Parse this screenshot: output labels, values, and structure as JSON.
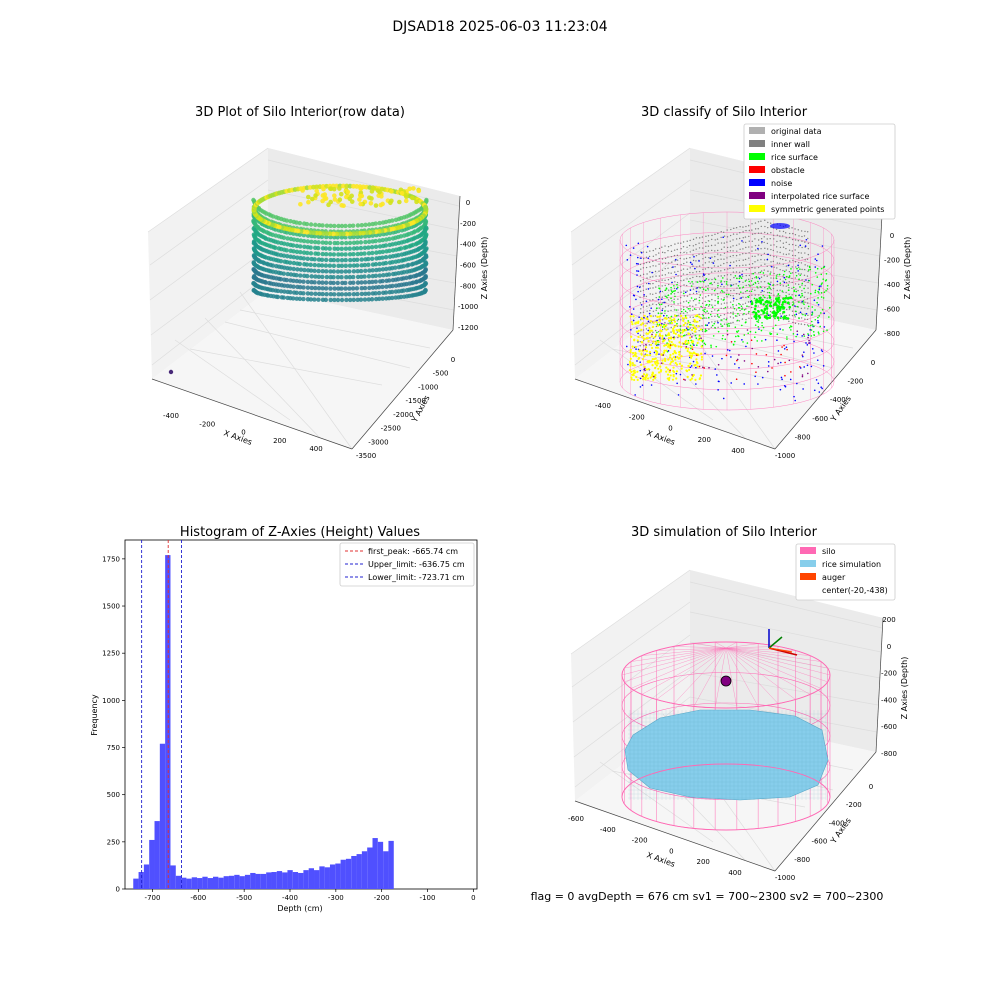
{
  "suptitle": "DJSAD18 2025-06-03 11:23:04",
  "footer": "flag = 0     avgDepth = 676 cm  sv1 = 700~2300  sv2 = 700~2300",
  "colors": {
    "hist_bar": "#5050ff",
    "first_peak": "#e03030",
    "limit": "#2020d0",
    "silo": "#ff69b4",
    "rice_sim": "#87ceeb",
    "auger": "#ff4500",
    "original": "#b0b0b0",
    "inner_wall": "#808080",
    "rice_surface": "#00ff00",
    "obstacle": "#ff0000",
    "noise": "#0000ff",
    "interpolated": "#800080",
    "symmetric": "#ffff00"
  },
  "chart_data": [
    {
      "type": "scatter",
      "subtype": "scatter3d",
      "title": "3D Plot of Silo Interior(row data)",
      "xlabel": "X Axies",
      "ylabel": "Y Axies",
      "zlabel": "Z Axies (Depth)",
      "x_ticks": [
        "-400",
        "-200",
        "0",
        "200",
        "400"
      ],
      "y_ticks": [
        "0",
        "-500",
        "-1000",
        "-1500",
        "-2000",
        "-2500",
        "-3000",
        "-3500"
      ],
      "z_ticks": [
        "0",
        "-200",
        "-400",
        "-600",
        "-800",
        "-1000",
        "-1200"
      ],
      "colormap": "viridis"
    },
    {
      "type": "scatter",
      "subtype": "scatter3d",
      "title": "3D classify of Silo Interior",
      "xlabel": "X Axies",
      "ylabel": "Y Axies",
      "zlabel": "Z Axies (Depth)",
      "x_ticks": [
        "-400",
        "-200",
        "0",
        "200",
        "400"
      ],
      "y_ticks": [
        "0",
        "-200",
        "-400",
        "-600",
        "-800",
        "-1000"
      ],
      "z_ticks": [
        "0",
        "-200",
        "-400",
        "-600",
        "-800"
      ],
      "legend": [
        {
          "label": "original data",
          "color": "#b0b0b0"
        },
        {
          "label": "inner wall",
          "color": "#808080"
        },
        {
          "label": "rice surface",
          "color": "#00ff00"
        },
        {
          "label": "obstacle",
          "color": "#ff0000"
        },
        {
          "label": "noise",
          "color": "#0000ff"
        },
        {
          "label": "interpolated rice surface",
          "color": "#800080"
        },
        {
          "label": "symmetric generated points",
          "color": "#ffff00"
        }
      ],
      "legend_position": "upper right"
    },
    {
      "type": "bar",
      "subtype": "histogram",
      "title": "Histogram of Z-Axies (Height) Values",
      "xlabel": "Depth (cm)",
      "ylabel": "Frequency",
      "xlim": [
        -760,
        8
      ],
      "ylim": [
        0,
        1850
      ],
      "x_ticks": [
        -700,
        -600,
        -500,
        -400,
        -300,
        -200,
        -100,
        0
      ],
      "y_ticks": [
        0,
        250,
        500,
        750,
        1000,
        1250,
        1500,
        1750
      ],
      "bin_start": -742,
      "bin_width": 11.6,
      "values": [
        55,
        90,
        130,
        260,
        360,
        770,
        1770,
        125,
        70,
        60,
        55,
        62,
        58,
        65,
        58,
        65,
        60,
        68,
        70,
        75,
        68,
        75,
        85,
        80,
        80,
        88,
        90,
        95,
        88,
        100,
        90,
        85,
        100,
        110,
        100,
        120,
        115,
        130,
        135,
        155,
        160,
        175,
        185,
        200,
        220,
        270,
        250,
        200,
        255
      ],
      "vlines": [
        {
          "label": "first_peak: -665.74 cm",
          "x": -665.74,
          "color": "#e03030"
        },
        {
          "label": "Upper_limit: -636.75 cm",
          "x": -636.75,
          "color": "#2020d0"
        },
        {
          "label": "Lower_limit: -723.71 cm",
          "x": -723.71,
          "color": "#2020d0"
        }
      ],
      "legend_position": "upper right"
    },
    {
      "type": "scatter",
      "subtype": "surface3d",
      "title": "3D simulation of Silo Interior",
      "xlabel": "X Axies",
      "ylabel": "Y Axies",
      "zlabel": "Z Axies (Depth)",
      "x_ticks": [
        "-600",
        "-400",
        "-200",
        "0",
        "200",
        "400"
      ],
      "y_ticks": [
        "0",
        "-200",
        "-400",
        "-600",
        "-800",
        "-1000"
      ],
      "z_ticks": [
        "200",
        "0",
        "-200",
        "-400",
        "-600",
        "-800"
      ],
      "legend": [
        {
          "label": "silo",
          "color": "#ff69b4"
        },
        {
          "label": "rice simulation",
          "color": "#87ceeb"
        },
        {
          "label": "auger",
          "color": "#ff4500"
        },
        {
          "label": "center(-20,-438)",
          "color": ""
        }
      ],
      "legend_position": "upper right"
    }
  ]
}
